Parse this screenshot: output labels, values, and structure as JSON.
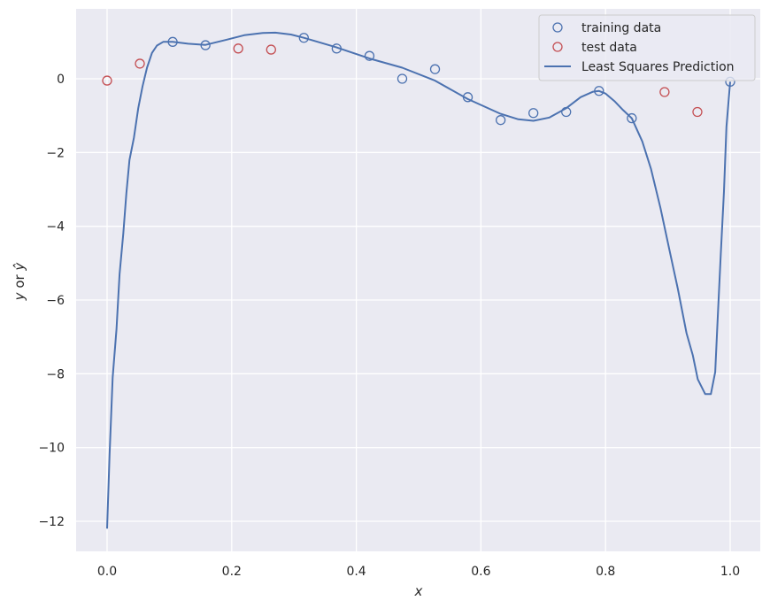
{
  "chart_data": {
    "type": "scatter",
    "title": "",
    "xlabel": "x",
    "ylabel": "y or ŷ",
    "xlim": [
      -0.05,
      1.05
    ],
    "ylim": [
      -12.8,
      1.9
    ],
    "grid": true,
    "legend_position": "upper right",
    "xticks": [
      0.0,
      0.2,
      0.4,
      0.6,
      0.8,
      1.0
    ],
    "xtick_labels": [
      "0.0",
      "0.2",
      "0.4",
      "0.6",
      "0.8",
      "1.0"
    ],
    "yticks": [
      0,
      -2,
      -4,
      -6,
      -8,
      -10,
      -12
    ],
    "ytick_labels": [
      "0",
      "−2",
      "−4",
      "−6",
      "−8",
      "−10",
      "−12"
    ],
    "series": [
      {
        "name": "training data",
        "kind": "scatter",
        "marker": "open-circle",
        "color": "#4c72b0",
        "x": [
          0.1053,
          0.1579,
          0.3158,
          0.3684,
          0.4211,
          0.4737,
          0.5263,
          0.5789,
          0.6316,
          0.6842,
          0.7368,
          0.7895,
          0.8421,
          1.0
        ],
        "y": [
          1.0,
          0.91,
          1.11,
          0.82,
          0.62,
          0.0,
          0.26,
          -0.5,
          -1.12,
          -0.93,
          -0.9,
          -0.33,
          -1.07,
          -0.08
        ]
      },
      {
        "name": "test data",
        "kind": "scatter",
        "marker": "open-circle",
        "color": "#c44e52",
        "x": [
          0.0,
          0.0526,
          0.2105,
          0.2632,
          0.8947,
          0.9474
        ],
        "y": [
          -0.05,
          0.41,
          0.82,
          0.79,
          -0.36,
          -0.9
        ]
      },
      {
        "name": "Least Squares Prediction",
        "kind": "line",
        "color": "#4c72b0",
        "x": [
          0.0,
          0.004,
          0.009,
          0.015,
          0.02,
          0.026,
          0.031,
          0.036,
          0.043,
          0.05,
          0.057,
          0.064,
          0.072,
          0.08,
          0.09,
          0.1053,
          0.13,
          0.1579,
          0.19,
          0.22,
          0.25,
          0.27,
          0.295,
          0.3158,
          0.3684,
          0.4211,
          0.4737,
          0.5263,
          0.5789,
          0.6316,
          0.66,
          0.6842,
          0.71,
          0.7368,
          0.76,
          0.78,
          0.7895,
          0.8,
          0.815,
          0.8281,
          0.8421,
          0.859,
          0.873,
          0.888,
          0.902,
          0.916,
          0.93,
          0.94,
          0.948,
          0.96,
          0.969,
          0.976,
          0.98,
          0.985,
          0.99,
          0.994,
          1.0
        ],
        "y": [
          -12.2,
          -10.2,
          -8.1,
          -6.8,
          -5.3,
          -4.2,
          -3.1,
          -2.2,
          -1.6,
          -0.8,
          -0.2,
          0.3,
          0.7,
          0.9,
          1.0,
          1.0,
          0.95,
          0.92,
          1.05,
          1.18,
          1.24,
          1.25,
          1.2,
          1.11,
          0.85,
          0.55,
          0.3,
          -0.05,
          -0.55,
          -0.95,
          -1.1,
          -1.14,
          -1.05,
          -0.8,
          -0.5,
          -0.35,
          -0.33,
          -0.4,
          -0.62,
          -0.85,
          -1.07,
          -1.7,
          -2.45,
          -3.5,
          -4.6,
          -5.7,
          -6.9,
          -7.5,
          -8.15,
          -8.55,
          -8.55,
          -7.95,
          -6.5,
          -4.75,
          -3.05,
          -1.3,
          -0.08
        ]
      }
    ]
  },
  "legend": {
    "items": [
      {
        "label": "training data",
        "symbol": "circle",
        "color": "#4c72b0"
      },
      {
        "label": "test data",
        "symbol": "circle",
        "color": "#c44e52"
      },
      {
        "label": "Least Squares Prediction",
        "symbol": "line",
        "color": "#4c72b0"
      }
    ]
  },
  "axes": {
    "xlabel": "x",
    "ylabel_main": "y",
    "ylabel_or": " or ",
    "ylabel_hat": "ŷ",
    "xticks": [
      "0.0",
      "0.2",
      "0.4",
      "0.6",
      "0.8",
      "1.0"
    ],
    "yticks": [
      "0",
      "−2",
      "−4",
      "−6",
      "−8",
      "−10",
      "−12"
    ]
  },
  "colors": {
    "plot_background": "#eaeaf2",
    "grid": "#ffffff",
    "training": "#4c72b0",
    "test": "#c44e52",
    "line": "#4c72b0"
  }
}
